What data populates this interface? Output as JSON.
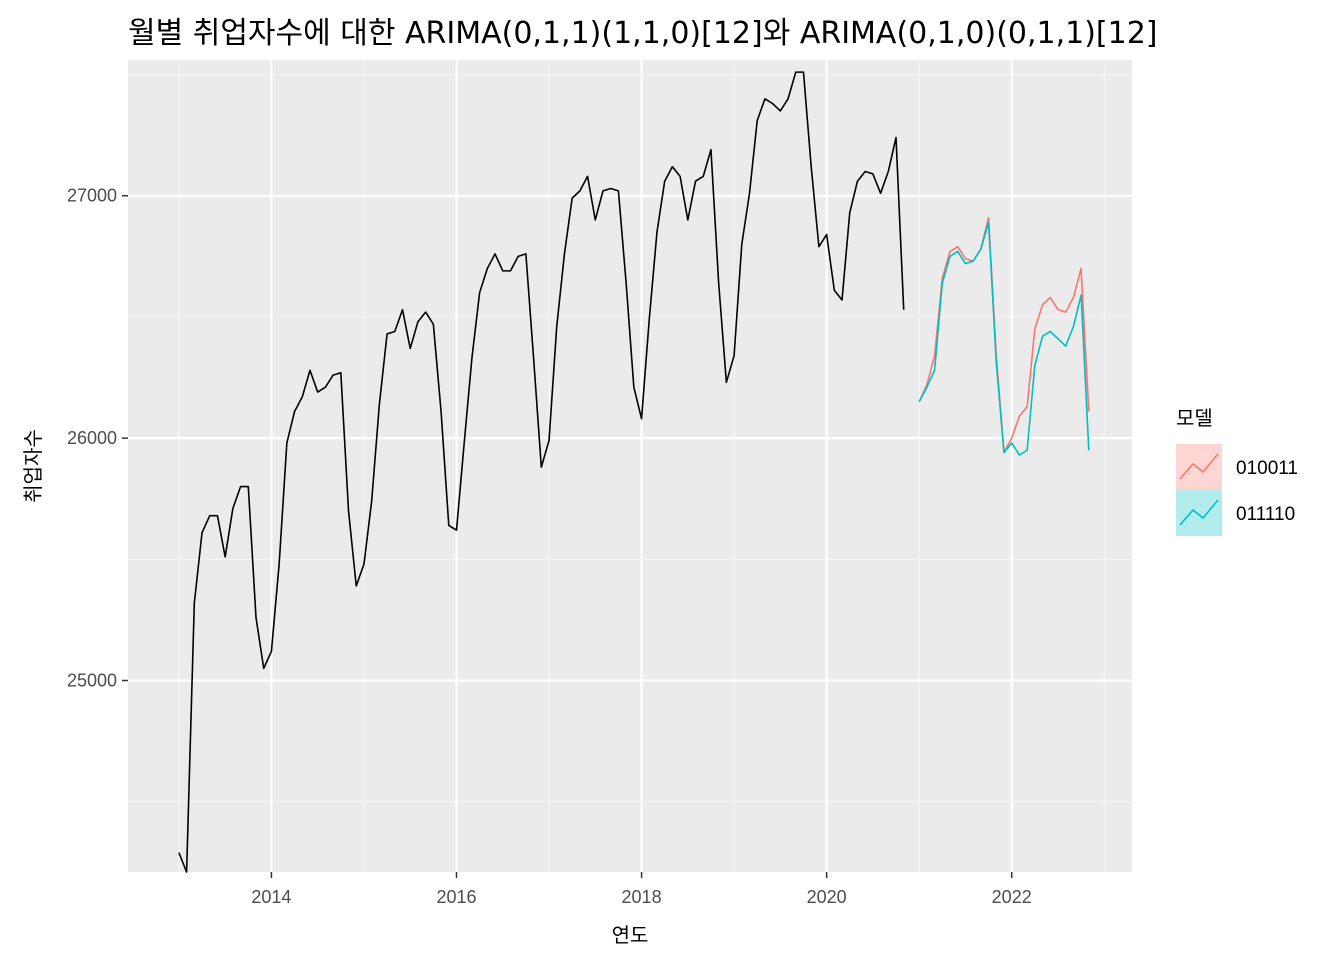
{
  "chart_data": {
    "type": "line",
    "title": "월별 취업자수에 대한 ARIMA(0,1,1)(1,1,0)[12]와 ARIMA(0,1,0)(0,1,1)[12]",
    "xlabel": "연도",
    "ylabel": "취업자수",
    "xlim": [
      2012.45,
      2023.3
    ],
    "ylim": [
      24210,
      27560
    ],
    "x_ticks": [
      2014,
      2016,
      2018,
      2020,
      2022
    ],
    "x_tick_labels": [
      "2014",
      "2016",
      "2018",
      "2020",
      "2022"
    ],
    "y_ticks": [
      25000,
      26000,
      27000
    ],
    "y_tick_labels": [
      "25000",
      "26000",
      "27000"
    ],
    "grid": true,
    "legend": {
      "title": "모델",
      "position": "right"
    },
    "series": [
      {
        "x_start": 2013.0,
        "step": 0.08333,
        "color": "#000000",
        "values": [
          24290,
          24210,
          25320,
          25610,
          25680,
          25680,
          25510,
          25710,
          25800,
          25800,
          25260,
          25050,
          25120,
          25480,
          25980,
          26110,
          26170,
          26280,
          26190,
          26210,
          26260,
          26270,
          25700,
          25390,
          25480,
          25740,
          26140,
          26430,
          26440,
          26530,
          26370,
          26480,
          26520,
          26470,
          26110,
          25640,
          25620,
          25980,
          26330,
          26600,
          26700,
          26760,
          26690,
          26690,
          26750,
          26760,
          26330,
          25880,
          25990,
          26460,
          26760,
          26990,
          27020,
          27080,
          26900,
          27020,
          27030,
          27020,
          26640,
          26210,
          26080,
          26490,
          26850,
          27060,
          27120,
          27080,
          26900,
          27060,
          27080,
          27190,
          26640,
          26230,
          26340,
          26800,
          27010,
          27310,
          27400,
          27380,
          27350,
          27400,
          27510,
          27510,
          27120,
          26790,
          26840,
          26610,
          26570,
          26930,
          27060,
          27100,
          27090,
          27010,
          27100,
          27240,
          26530
        ]
      },
      {
        "name": "010011",
        "x_start": 2021.0,
        "step": 0.08333,
        "color": "#F8766D",
        "values": [
          26150,
          26220,
          26340,
          26660,
          26770,
          26790,
          26740,
          26730,
          26780,
          26910,
          26340,
          25940,
          26000,
          26090,
          26130,
          26450,
          26550,
          26580,
          26530,
          26520,
          26580,
          26700,
          26110
        ]
      },
      {
        "name": "011110",
        "x_start": 2021.0,
        "step": 0.08333,
        "color": "#00BFC4",
        "values": [
          26150,
          26210,
          26280,
          26640,
          26750,
          26770,
          26720,
          26730,
          26780,
          26890,
          26310,
          25940,
          25980,
          25930,
          25950,
          26300,
          26420,
          26440,
          26410,
          26380,
          26460,
          26590,
          25950
        ]
      }
    ]
  },
  "theme": {
    "panel_bg": "#EBEBEB",
    "grid_major": "#FFFFFF",
    "grid_minor": "#F5F5F5",
    "tick_color": "#333333"
  }
}
